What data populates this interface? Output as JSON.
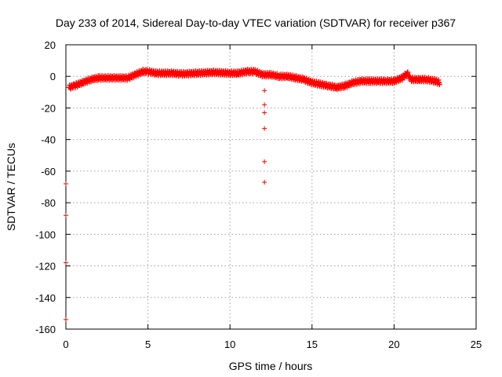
{
  "chart_data": {
    "type": "scatter",
    "title": "Day 233 of 2014, Sidereal Day-to-day VTEC variation (SDTVAR) for receiver p367",
    "xlabel": "GPS time / hours",
    "ylabel": "SDTVAR / TECUs",
    "xlim": [
      0,
      25
    ],
    "ylim": [
      -160,
      20
    ],
    "xticks": [
      0,
      5,
      10,
      15,
      20,
      25
    ],
    "yticks": [
      20,
      0,
      -20,
      -40,
      -60,
      -80,
      -100,
      -120,
      -140,
      -160
    ],
    "grid": true,
    "marker": "+",
    "series_color": "#ff0000",
    "series": [
      {
        "name": "SDTVAR",
        "main_trace": [
          [
            0.2,
            -7
          ],
          [
            0.5,
            -6
          ],
          [
            1.0,
            -4
          ],
          [
            1.5,
            -2
          ],
          [
            2.0,
            -1
          ],
          [
            3.0,
            -1
          ],
          [
            3.8,
            -1
          ],
          [
            4.2,
            1
          ],
          [
            4.7,
            3
          ],
          [
            5.0,
            3
          ],
          [
            5.5,
            2
          ],
          [
            6.5,
            2
          ],
          [
            7.0,
            1.5
          ],
          [
            8.0,
            2
          ],
          [
            9.0,
            2.5
          ],
          [
            10.0,
            2
          ],
          [
            10.5,
            2
          ],
          [
            11.0,
            3
          ],
          [
            11.5,
            3
          ],
          [
            12.0,
            1
          ],
          [
            12.5,
            1
          ],
          [
            13.0,
            0
          ],
          [
            13.5,
            0
          ],
          [
            14.0,
            -1
          ],
          [
            14.5,
            -2
          ],
          [
            15.0,
            -4
          ],
          [
            15.5,
            -5
          ],
          [
            16.0,
            -6
          ],
          [
            16.5,
            -7
          ],
          [
            17.0,
            -6
          ],
          [
            17.5,
            -4
          ],
          [
            18.0,
            -3
          ],
          [
            18.5,
            -3
          ],
          [
            19.0,
            -3
          ],
          [
            19.5,
            -3
          ],
          [
            20.0,
            -3
          ],
          [
            20.5,
            -1
          ],
          [
            20.8,
            2
          ],
          [
            21.0,
            -2
          ],
          [
            21.5,
            -2
          ],
          [
            22.0,
            -2
          ],
          [
            22.5,
            -3
          ],
          [
            22.8,
            -4
          ]
        ],
        "outliers": [
          [
            12.1,
            -9
          ],
          [
            12.1,
            -18
          ],
          [
            12.1,
            -23
          ],
          [
            12.1,
            -33
          ],
          [
            12.1,
            -54
          ],
          [
            12.1,
            -67
          ],
          [
            0.0,
            -68
          ],
          [
            0.0,
            -88
          ],
          [
            0.0,
            -118
          ],
          [
            0.0,
            -154
          ]
        ]
      }
    ]
  }
}
